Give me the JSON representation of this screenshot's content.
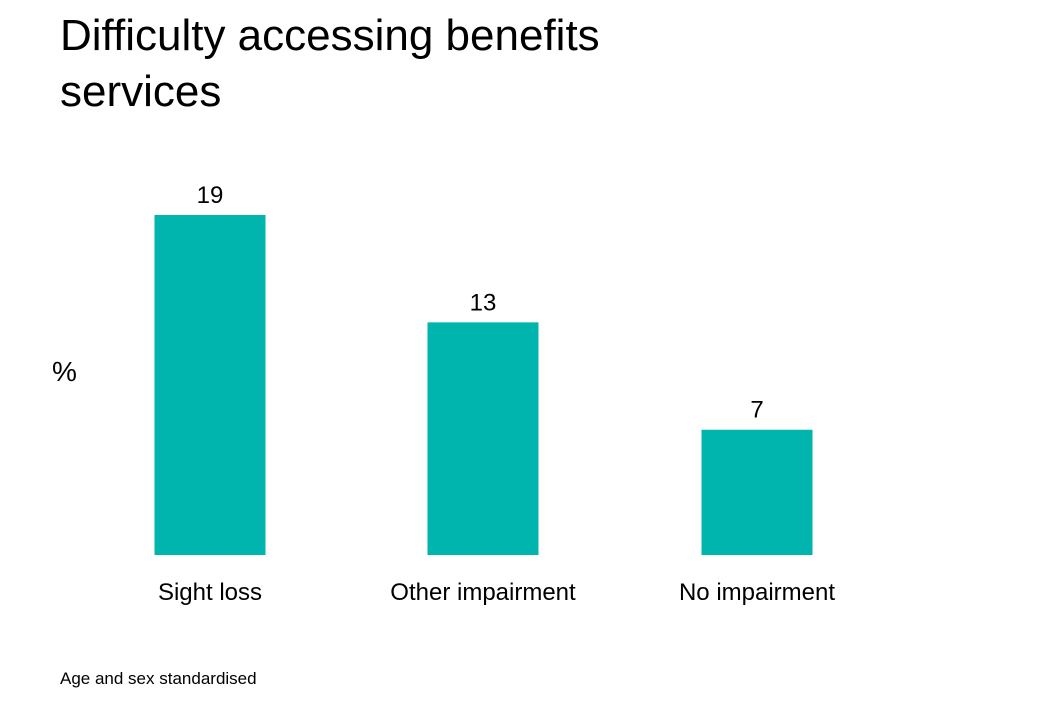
{
  "chart_data": {
    "type": "bar",
    "title": "Difficulty accessing benefits services",
    "xlabel": "",
    "ylabel": "%",
    "categories": [
      "Sight loss",
      "Other impairment",
      "No impairment"
    ],
    "values": [
      19,
      13,
      7
    ],
    "ylim": [
      0,
      19
    ],
    "grid": false,
    "legend": "none",
    "colors": {
      "bar": "#00B5AD"
    },
    "footnote": "Age and sex standardised"
  }
}
